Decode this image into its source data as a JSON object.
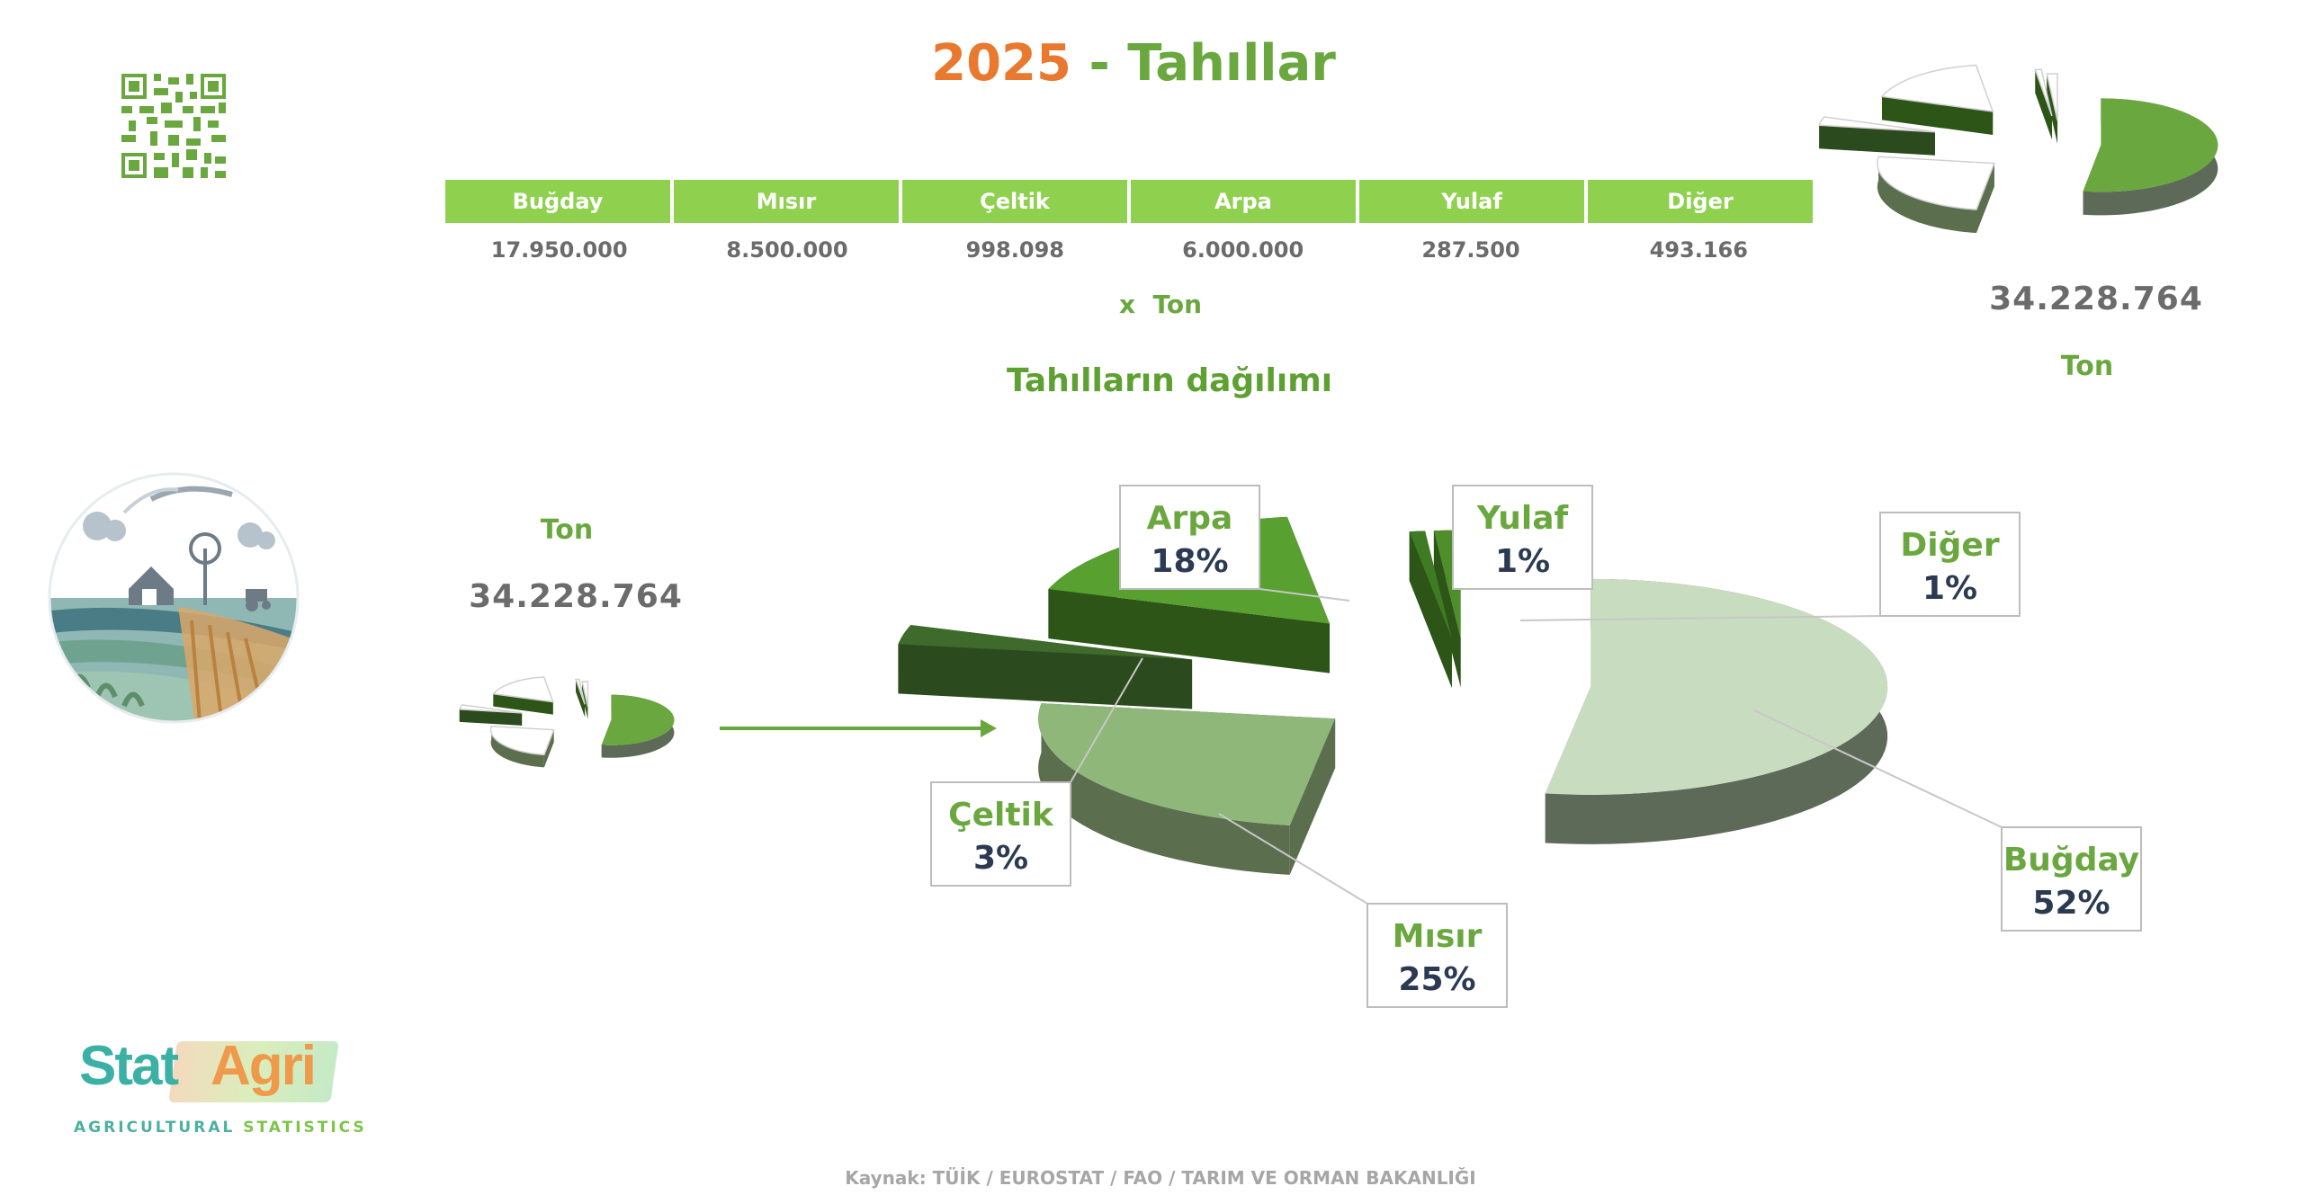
{
  "header": {
    "year": "2025",
    "separator": "-",
    "title": "Tahıllar"
  },
  "table": {
    "headers": [
      "Buğday",
      "Mısır",
      "Çeltik",
      "Arpa",
      "Yulaf",
      "Diğer"
    ],
    "values": [
      "17.950.000",
      "8.500.000",
      "998.098",
      "6.000.000",
      "287.500",
      "493.166"
    ],
    "unit": "x  Ton"
  },
  "subtitle": "Tahılların dağılımı",
  "totals": {
    "left_value": "34.228.764",
    "left_unit": "Ton",
    "right_value": "34.228.764",
    "right_unit": "Ton"
  },
  "brand": {
    "stat": "Stat",
    "agri": "Agri",
    "subtitle_a": "AGRICULTURAL ",
    "subtitle_b": "STATISTICS"
  },
  "source": "Kaynak: TÜİK / EUROSTAT / FAO / TARIM VE ORMAN BAKANLIĞI",
  "chart_data": {
    "type": "pie",
    "categories": [
      "Buğday",
      "Mısır",
      "Çeltik",
      "Arpa",
      "Yulaf",
      "Diğer"
    ],
    "values": [
      17950000,
      8500000,
      998098,
      6000000,
      287500,
      493166
    ],
    "percent_labels": [
      "52%",
      "25%",
      "3%",
      "18%",
      "1%",
      "1%"
    ],
    "exploded": true,
    "style": "3d",
    "colors": [
      "#c8dcc0",
      "#8fb77a",
      "#3e6a2b",
      "#58a02f",
      "#3e7b23",
      "#4f8f2b"
    ],
    "side_colors": [
      "#5d6a58",
      "#5b6f4f",
      "#2b4a1e",
      "#2d5518",
      "#2d5518",
      "#2d5518"
    ]
  },
  "colors": {
    "accent_green": "#8fd14f",
    "title_orange": "#e8792f",
    "title_green": "#6aa83f",
    "arrow": "#6aa83f"
  },
  "icons": {
    "qr": "qr-code-icon",
    "farm": "farm-landscape-icon",
    "arrow": "right-arrow-icon"
  }
}
